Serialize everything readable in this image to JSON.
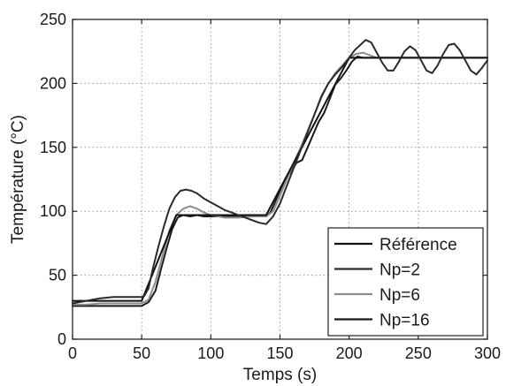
{
  "chart_data": {
    "type": "line",
    "title": "",
    "xlabel": "Temps (s)",
    "ylabel": "Température (°C)",
    "xlim": [
      0,
      300
    ],
    "ylim": [
      0,
      250
    ],
    "xticks": [
      0,
      50,
      100,
      150,
      200,
      250,
      300
    ],
    "yticks": [
      0,
      50,
      100,
      150,
      200,
      250
    ],
    "grid": true,
    "legend_position": "bottom-right",
    "series": [
      {
        "name": "Référence",
        "color": "#111111",
        "x": [
          0,
          50,
          75,
          140,
          200,
          300
        ],
        "y": [
          30,
          30,
          97,
          97,
          220,
          220
        ]
      },
      {
        "name": "Np=2",
        "color": "#2a2a2a",
        "x": [
          0,
          5,
          10,
          15,
          20,
          30,
          40,
          50,
          52,
          55,
          58,
          62,
          66,
          70,
          74,
          78,
          82,
          86,
          90,
          95,
          100,
          105,
          110,
          115,
          120,
          125,
          130,
          135,
          140,
          145,
          150,
          155,
          160,
          165,
          170,
          175,
          180,
          185,
          190,
          195,
          200,
          204,
          208,
          212,
          216,
          220,
          224,
          228,
          232,
          236,
          240,
          244,
          248,
          252,
          256,
          260,
          264,
          268,
          272,
          276,
          280,
          284,
          288,
          292,
          296,
          300
        ],
        "y": [
          28,
          29,
          30,
          31,
          32,
          33,
          33,
          33,
          34,
          40,
          55,
          72,
          88,
          102,
          111,
          116,
          117,
          116,
          114,
          110,
          107,
          104,
          101,
          99,
          97,
          95,
          93,
          91,
          90,
          96,
          106,
          120,
          134,
          148,
          162,
          176,
          190,
          200,
          207,
          213,
          220,
          226,
          230,
          234,
          232,
          224,
          216,
          210,
          210,
          217,
          225,
          229,
          226,
          218,
          210,
          208,
          214,
          223,
          230,
          231,
          226,
          218,
          210,
          207,
          212,
          218
        ]
      },
      {
        "name": "Np=6",
        "color": "#8c8c8c",
        "x": [
          0,
          10,
          20,
          30,
          40,
          50,
          55,
          60,
          65,
          70,
          75,
          80,
          85,
          90,
          95,
          100,
          110,
          120,
          130,
          140,
          145,
          150,
          155,
          160,
          165,
          170,
          175,
          180,
          185,
          190,
          195,
          200,
          205,
          210,
          215,
          220,
          230,
          240,
          250,
          260,
          270,
          280,
          290,
          300
        ],
        "y": [
          27,
          27,
          28,
          28,
          28,
          28,
          31,
          45,
          65,
          85,
          97,
          102,
          104,
          102,
          99,
          97,
          95,
          95,
          96,
          96,
          100,
          112,
          125,
          138,
          150,
          163,
          176,
          189,
          200,
          208,
          214,
          220,
          223,
          224,
          222,
          220,
          220,
          220,
          220,
          220,
          220,
          220,
          220,
          220
        ]
      },
      {
        "name": "Np=16",
        "color": "#1a1a1a",
        "x": [
          0,
          10,
          20,
          30,
          40,
          50,
          55,
          60,
          64,
          68,
          72,
          76,
          80,
          85,
          90,
          95,
          100,
          110,
          120,
          130,
          140,
          143,
          146,
          150,
          154,
          158,
          162,
          166,
          170,
          174,
          178,
          182,
          186,
          190,
          194,
          198,
          202,
          206,
          210,
          215,
          220,
          230,
          240,
          250,
          260,
          270,
          280,
          290,
          300
        ],
        "y": [
          26,
          26,
          26,
          26,
          26,
          26,
          29,
          38,
          55,
          71,
          86,
          95,
          97,
          96,
          97,
          96,
          96,
          96,
          96,
          96,
          96,
          99,
          106,
          116,
          126,
          131,
          138,
          140,
          150,
          160,
          170,
          177,
          188,
          199,
          204,
          210,
          217,
          221,
          220,
          220,
          220,
          220,
          220,
          220,
          220,
          220,
          220,
          220,
          220
        ]
      }
    ]
  }
}
